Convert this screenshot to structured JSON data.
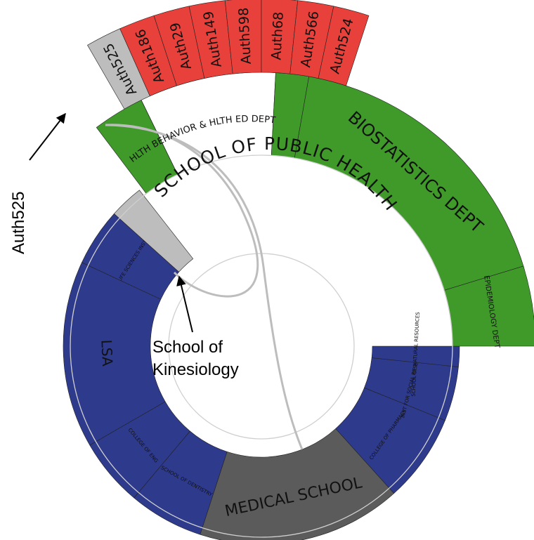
{
  "colors": {
    "author": "#e8403a",
    "author_highlight": "#bdbdbd",
    "department": "#3f9a2a",
    "school_other": "#2e3a8c",
    "medical": "#5b5b5b",
    "kinesiology": "#bdbdbd",
    "link": "#bdbdbd"
  },
  "center": {
    "school_label": "SCHOOL OF PUBLIC HEALTH"
  },
  "units": [
    {
      "label": "LIFE SCIENCES INST",
      "color_key": "school_other"
    },
    {
      "label": "LSA",
      "color_key": "school_other"
    },
    {
      "label": "COLLEGE OF ENG",
      "color_key": "school_other"
    },
    {
      "label": "SCHOOL OF DENTISTRY",
      "color_key": "school_other"
    },
    {
      "label": "MEDICAL SCHOOL",
      "color_key": "medical"
    },
    {
      "label": "COLLEGE OF PHARMACY",
      "color_key": "school_other"
    },
    {
      "label": "INST FOR SOCIAL RESEARCH",
      "color_key": "school_other"
    },
    {
      "label": "SCHOOL OF NATURAL RESOURCES",
      "color_key": "school_other"
    },
    {
      "label": "",
      "color_key": "kinesiology"
    }
  ],
  "departments": [
    {
      "label": "",
      "color_key": "department"
    },
    {
      "label": "HLTH BEHAVIOR & HLTH ED DEPT",
      "color_key": "none"
    },
    {
      "label": "",
      "color_key": "department"
    },
    {
      "label": "BIOSTATISTICS DEPT",
      "color_key": "department"
    },
    {
      "label": "EPIDEMIOLOGY DEPT",
      "color_key": "department"
    }
  ],
  "authors": [
    {
      "label": "Auth525",
      "color_key": "author_highlight"
    },
    {
      "label": "Auth186",
      "color_key": "author"
    },
    {
      "label": "Auth29",
      "color_key": "author"
    },
    {
      "label": "Auth149",
      "color_key": "author"
    },
    {
      "label": "Auth598",
      "color_key": "author"
    },
    {
      "label": "Auth68",
      "color_key": "author"
    },
    {
      "label": "Auth566",
      "color_key": "author"
    },
    {
      "label": "Auth524",
      "color_key": "author"
    }
  ],
  "annotations": {
    "author_callout": "Auth525",
    "unit_callout_line1": "School of",
    "unit_callout_line2": "Kinesiology"
  }
}
